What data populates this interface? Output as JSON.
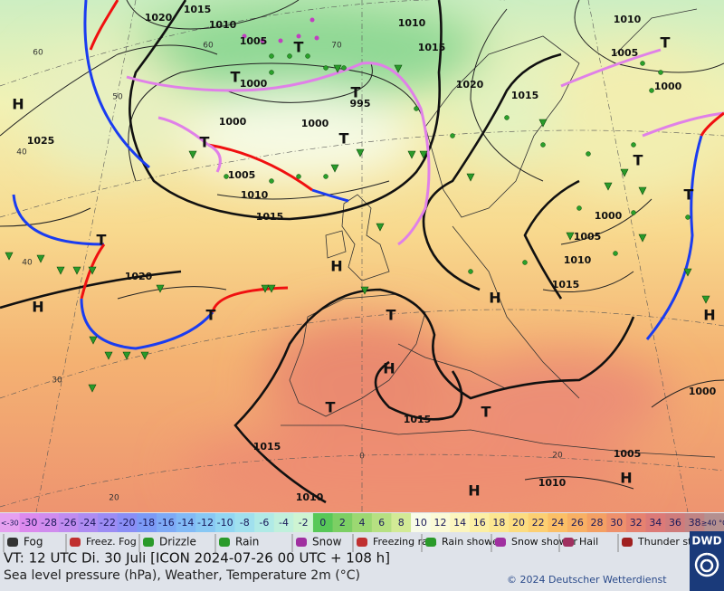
{
  "map": {
    "isobar_labels": [
      1020,
      1015,
      1010,
      1005,
      1000,
      1010,
      1015,
      1020,
      1015,
      1010,
      1005,
      1000,
      995,
      1000,
      1000,
      1005,
      1010,
      1015,
      1025,
      1020,
      1000,
      1005,
      1010,
      1015,
      1015,
      1015,
      1010,
      1010,
      1005,
      1000
    ],
    "pressure_centers": [
      "H",
      "H",
      "T",
      "T",
      "T",
      "T",
      "T",
      "T",
      "T",
      "T",
      "T",
      "H",
      "T",
      "H",
      "T",
      "H",
      "H",
      "T",
      "T",
      "H",
      "H"
    ],
    "latitude_labels": [
      60,
      50,
      40,
      40,
      30,
      20,
      60,
      70,
      0,
      20
    ]
  },
  "legend": {
    "scale": [
      {
        "label": "<-30",
        "color": "#e6a0f0"
      },
      {
        "label": "-30",
        "color": "#dc8aee"
      },
      {
        "label": "-28",
        "color": "#d08cee"
      },
      {
        "label": "-26",
        "color": "#c08cf0"
      },
      {
        "label": "-24",
        "color": "#ae8cf2"
      },
      {
        "label": "-22",
        "color": "#9c8cf4"
      },
      {
        "label": "-20",
        "color": "#8a8ef6"
      },
      {
        "label": "-18",
        "color": "#7c9af6"
      },
      {
        "label": "-16",
        "color": "#7eaaf6"
      },
      {
        "label": "-14",
        "color": "#82baf6"
      },
      {
        "label": "-12",
        "color": "#88c8f4"
      },
      {
        "label": "-10",
        "color": "#92d6f2"
      },
      {
        "label": "-8",
        "color": "#a0e0ee"
      },
      {
        "label": "-6",
        "color": "#b0eae6"
      },
      {
        "label": "-4",
        "color": "#c0f0dc"
      },
      {
        "label": "-2",
        "color": "#cef4d2"
      },
      {
        "label": "0",
        "color": "#58c858"
      },
      {
        "label": "2",
        "color": "#7ccf64"
      },
      {
        "label": "4",
        "color": "#9cd872"
      },
      {
        "label": "6",
        "color": "#b6e082"
      },
      {
        "label": "8",
        "color": "#d2ea96"
      },
      {
        "label": "10",
        "color": "#f8fbe8"
      },
      {
        "label": "12",
        "color": "#fbfad6"
      },
      {
        "label": "14",
        "color": "#fcf5be"
      },
      {
        "label": "16",
        "color": "#fcefa4"
      },
      {
        "label": "18",
        "color": "#fce690"
      },
      {
        "label": "20",
        "color": "#fcdc80"
      },
      {
        "label": "22",
        "color": "#fccf72"
      },
      {
        "label": "24",
        "color": "#fbbf66"
      },
      {
        "label": "26",
        "color": "#f8b064"
      },
      {
        "label": "28",
        "color": "#f4a064"
      },
      {
        "label": "30",
        "color": "#ee906c"
      },
      {
        "label": "32",
        "color": "#e68270"
      },
      {
        "label": "34",
        "color": "#dc7a78"
      },
      {
        "label": "36",
        "color": "#cf7c7c"
      },
      {
        "label": "38",
        "color": "#c08484"
      },
      {
        "label": "≥40 °C",
        "color": "#b49090"
      }
    ],
    "symbols": [
      "Fog",
      "Freez. Fog",
      "Drizzle",
      "Rain",
      "Snow",
      "Freezing rain",
      "Rain shower",
      "Snow shower",
      "Hail",
      "Thunder storm"
    ]
  },
  "footer": {
    "valid_time": "VT: 12 UTC Di.  30 Juli [ICON 2024-07-26  00 UTC + 108 h]",
    "description": "Sea level pressure (hPa), Weather, Temperature 2m (°C)",
    "copyright": "© 2024 Deutscher Wetterdienst",
    "logo": "DWD"
  }
}
